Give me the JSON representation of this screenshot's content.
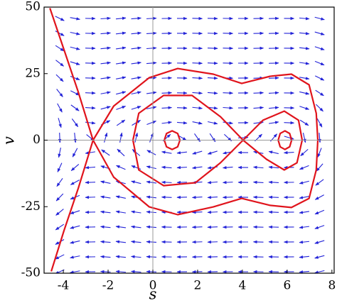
{
  "chart_data": {
    "type": "phase",
    "x_label": "s",
    "y_label": "v",
    "xlim": [
      -4.86,
      8.1
    ],
    "ylim": [
      -50,
      50
    ],
    "xticks": [
      -4,
      -2,
      0,
      2,
      4,
      6,
      8
    ],
    "yticks": [
      -50,
      -25,
      0,
      25,
      50
    ],
    "field_color": "#2323d8",
    "series": [
      {
        "color": "#e0141c",
        "x": [
          -4.6,
          -3.97,
          -3.33,
          -2.67,
          -3.33,
          -3.97,
          -4.54
        ],
        "y": [
          49.6,
          34,
          18,
          0,
          -18,
          -34,
          -49.3
        ]
      },
      {
        "color": "#e0141c",
        "x": [
          -2.67,
          -1.75,
          -0.16,
          1.11,
          2.7,
          3.97,
          5.24,
          6.19,
          6.98,
          7.3,
          7.37,
          7.3,
          6.98,
          6.19,
          5.24,
          3.97,
          2.7,
          1.11,
          -0.16,
          -1.75,
          -2.67
        ],
        "y": [
          0,
          12.8,
          23.5,
          26.9,
          24.8,
          21.3,
          24,
          24.8,
          20.8,
          10.1,
          0,
          -11.2,
          -21.9,
          -25.3,
          -24.5,
          -21.9,
          -25.1,
          -28,
          -25.1,
          -13.9,
          0
        ]
      },
      {
        "color": "#e0141c",
        "x": [
          4.03,
          3.02,
          1.75,
          0.48,
          -0.63,
          -0.89,
          -0.63,
          0.48,
          1.9,
          3.02,
          4.03,
          4.92,
          5.87,
          6.51,
          6.67,
          6.44,
          5.87,
          5.08,
          4.03
        ],
        "y": [
          0,
          8.8,
          16.8,
          16.8,
          10.1,
          0,
          -11.2,
          -17.1,
          -16,
          -8.5,
          0,
          7.5,
          10.9,
          7.5,
          0,
          -8.5,
          -11.2,
          -7.2,
          0
        ]
      },
      {
        "color": "#e0141c",
        "x": [
          1.21,
          1.11,
          0.86,
          0.61,
          0.51,
          0.61,
          0.86,
          1.11,
          1.21
        ],
        "y": [
          0,
          2.5,
          3.5,
          2.5,
          0,
          -2.5,
          -3.5,
          -2.5,
          0
        ]
      },
      {
        "color": "#e0141c",
        "x": [
          6.2,
          6.11,
          5.9,
          5.69,
          5.6,
          5.69,
          5.9,
          6.11,
          6.2
        ],
        "y": [
          0,
          2.5,
          3.5,
          2.5,
          0,
          -2.5,
          -3.5,
          -2.5,
          0
        ]
      }
    ]
  }
}
